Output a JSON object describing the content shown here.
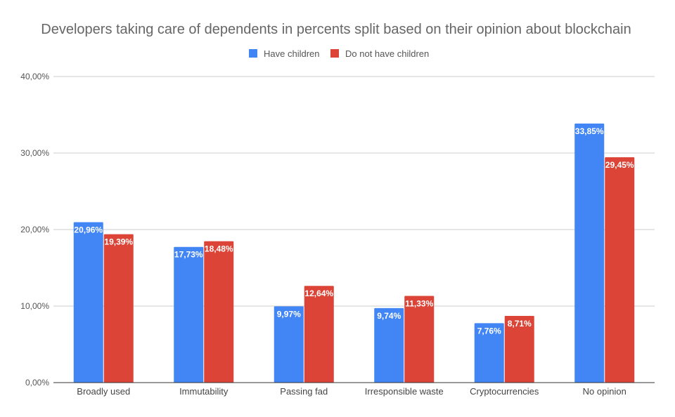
{
  "chart_data": {
    "type": "bar",
    "title": "Developers taking care of dependents in percents split based on their opinion about blockchain",
    "categories": [
      "Broadly used",
      "Immutability",
      "Passing fad",
      "Irresponsible waste",
      "Cryptocurrencies",
      "No opinion"
    ],
    "series": [
      {
        "name": "Have children",
        "color": "#4285f4",
        "values": [
          20.96,
          17.73,
          9.97,
          9.74,
          7.76,
          33.85
        ],
        "labels": [
          "20,96%",
          "17,73%",
          "9,97%",
          "9,74%",
          "7,76%",
          "33,85%"
        ]
      },
      {
        "name": "Do not have children",
        "color": "#db4437",
        "values": [
          19.39,
          18.48,
          12.64,
          11.33,
          8.71,
          29.45
        ],
        "labels": [
          "19,39%",
          "18,48%",
          "12,64%",
          "11,33%",
          "8,71%",
          "29,45%"
        ]
      }
    ],
    "ylim": [
      0,
      40
    ],
    "yticks": [
      0,
      10,
      20,
      30,
      40
    ],
    "ytick_labels": [
      "0,00%",
      "10,00%",
      "20,00%",
      "30,00%",
      "40,00%"
    ],
    "xlabel": "",
    "ylabel": "",
    "grid": true,
    "legend_position": "top-center"
  }
}
